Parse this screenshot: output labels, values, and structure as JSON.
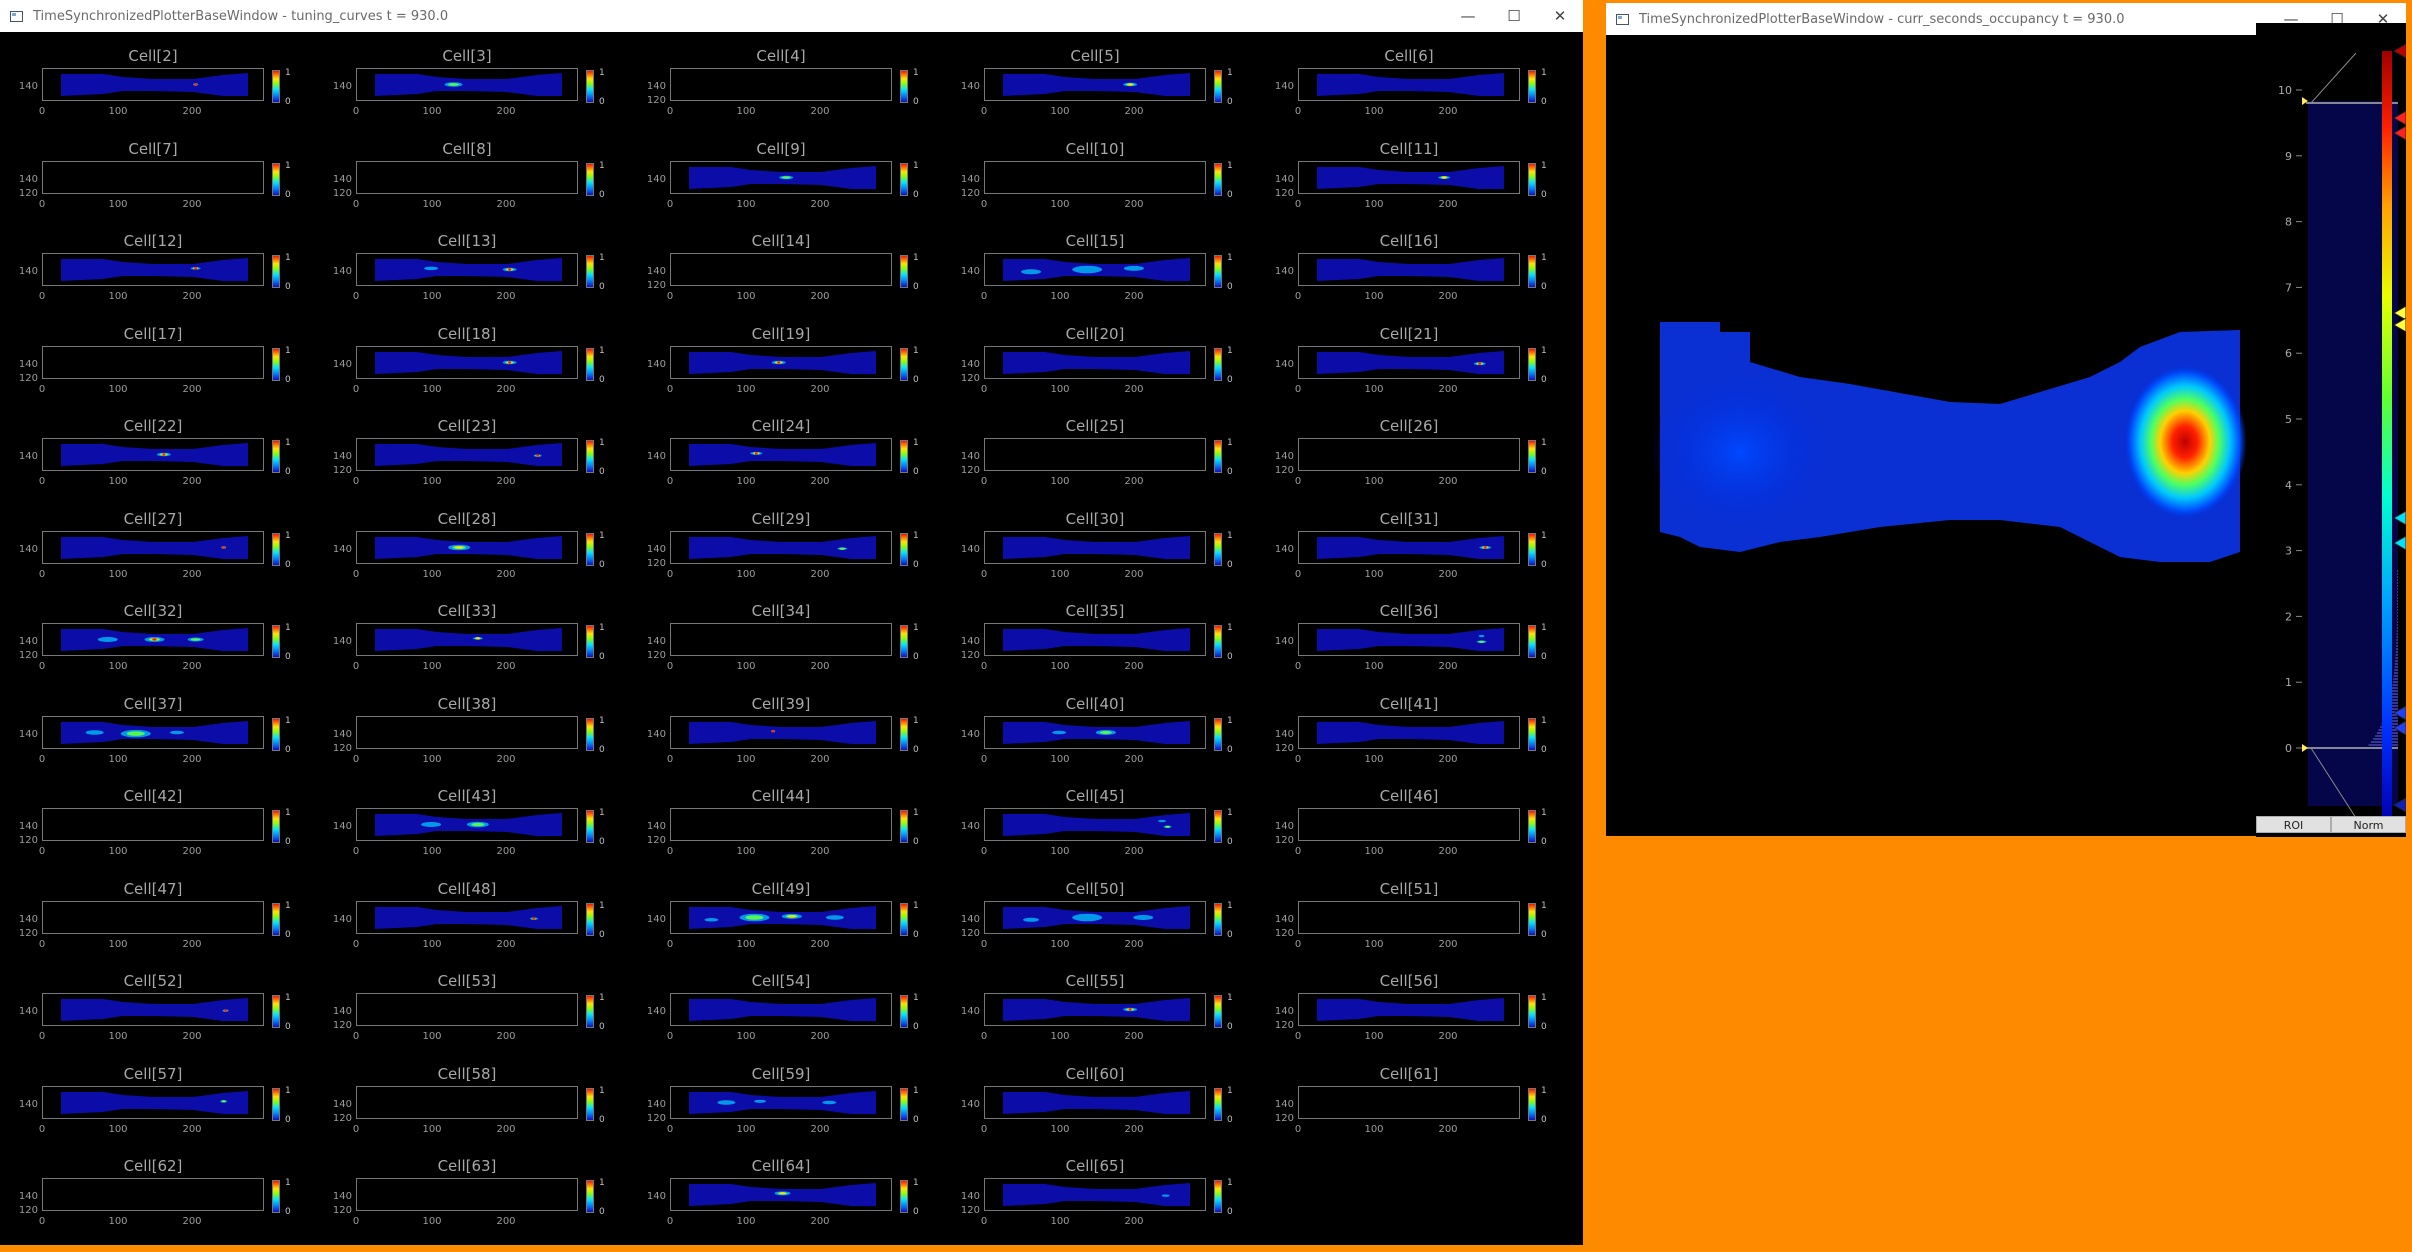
{
  "windows": {
    "tuning": {
      "title": "TimeSynchronizedPlotterBaseWindow - tuning_curves t = 930.0"
    },
    "occupancy": {
      "title": "TimeSynchronizedPlotterBaseWindow - curr_seconds_occupancy t = 930.0"
    }
  },
  "window_controls": {
    "minimize": "—",
    "maximize": "☐",
    "close": "✕"
  },
  "axis": {
    "y_top": "140",
    "y_bottom": "120",
    "x_ticks": [
      "0",
      "100",
      "200"
    ]
  },
  "colorbar": {
    "max": "1",
    "min": "0"
  },
  "cells": [
    {
      "label": "Cell[2]",
      "spots": [
        [
          0.72,
          0.5,
          5,
          1.0
        ]
      ]
    },
    {
      "label": "Cell[3]",
      "spots": [
        [
          0.42,
          0.5,
          18,
          0.75
        ]
      ]
    },
    {
      "label": "Cell[4]",
      "empty": true
    },
    {
      "label": "Cell[5]",
      "spots": [
        [
          0.68,
          0.5,
          14,
          0.8
        ]
      ]
    },
    {
      "label": "Cell[6]",
      "spots": []
    },
    {
      "label": "Cell[7]",
      "empty": true
    },
    {
      "label": "Cell[8]",
      "empty": true
    },
    {
      "label": "Cell[9]",
      "spots": [
        [
          0.52,
          0.5,
          14,
          0.7
        ]
      ]
    },
    {
      "label": "Cell[10]",
      "empty": true
    },
    {
      "label": "Cell[11]",
      "spots": [
        [
          0.68,
          0.5,
          12,
          0.8
        ]
      ]
    },
    {
      "label": "Cell[12]",
      "spots": [
        [
          0.72,
          0.45,
          10,
          0.9
        ]
      ]
    },
    {
      "label": "Cell[13]",
      "spots": [
        [
          0.3,
          0.45,
          14,
          0.6
        ],
        [
          0.72,
          0.5,
          14,
          1.0
        ]
      ]
    },
    {
      "label": "Cell[14]",
      "empty": true
    },
    {
      "label": "Cell[15]",
      "spots": [
        [
          0.15,
          0.6,
          20,
          0.6
        ],
        [
          0.45,
          0.5,
          30,
          0.55
        ],
        [
          0.7,
          0.45,
          20,
          0.55
        ]
      ]
    },
    {
      "label": "Cell[16]",
      "spots": []
    },
    {
      "label": "Cell[17]",
      "empty": true
    },
    {
      "label": "Cell[18]",
      "spots": [
        [
          0.72,
          0.5,
          14,
          0.9
        ]
      ]
    },
    {
      "label": "Cell[19]",
      "spots": [
        [
          0.48,
          0.5,
          14,
          1.0
        ]
      ]
    },
    {
      "label": "Cell[20]",
      "spots": []
    },
    {
      "label": "Cell[21]",
      "spots": [
        [
          0.87,
          0.55,
          12,
          1.0
        ]
      ]
    },
    {
      "label": "Cell[22]",
      "spots": [
        [
          0.55,
          0.5,
          14,
          1.0
        ]
      ]
    },
    {
      "label": "Cell[23]",
      "spots": [
        [
          0.87,
          0.55,
          8,
          1.0
        ]
      ]
    },
    {
      "label": "Cell[24]",
      "spots": [
        [
          0.36,
          0.45,
          12,
          0.9
        ]
      ]
    },
    {
      "label": "Cell[25]",
      "empty": true
    },
    {
      "label": "Cell[26]",
      "empty": true
    },
    {
      "label": "Cell[27]",
      "spots": [
        [
          0.87,
          0.5,
          5,
          0.9
        ]
      ]
    },
    {
      "label": "Cell[28]",
      "spots": [
        [
          0.45,
          0.5,
          22,
          0.8
        ]
      ]
    },
    {
      "label": "Cell[29]",
      "spots": [
        [
          0.82,
          0.55,
          10,
          0.7
        ]
      ]
    },
    {
      "label": "Cell[30]",
      "spots": []
    },
    {
      "label": "Cell[31]",
      "spots": [
        [
          0.9,
          0.5,
          12,
          1.0
        ]
      ]
    },
    {
      "label": "Cell[32]",
      "spots": [
        [
          0.25,
          0.5,
          20,
          0.55
        ],
        [
          0.5,
          0.5,
          20,
          0.9
        ],
        [
          0.72,
          0.5,
          16,
          0.7
        ]
      ]
    },
    {
      "label": "Cell[33]",
      "spots": [
        [
          0.55,
          0.45,
          10,
          0.8
        ]
      ]
    },
    {
      "label": "Cell[34]",
      "empty": true
    },
    {
      "label": "Cell[35]",
      "spots": []
    },
    {
      "label": "Cell[36]",
      "spots": [
        [
          0.88,
          0.35,
          6,
          0.6
        ],
        [
          0.88,
          0.6,
          10,
          0.7
        ]
      ]
    },
    {
      "label": "Cell[37]",
      "spots": [
        [
          0.18,
          0.5,
          18,
          0.55
        ],
        [
          0.4,
          0.55,
          30,
          0.75
        ],
        [
          0.62,
          0.5,
          14,
          0.5
        ]
      ]
    },
    {
      "label": "Cell[38]",
      "empty": true
    },
    {
      "label": "Cell[39]",
      "spots": [
        [
          0.45,
          0.45,
          4,
          1.0
        ]
      ]
    },
    {
      "label": "Cell[40]",
      "spots": [
        [
          0.3,
          0.5,
          14,
          0.5
        ],
        [
          0.55,
          0.5,
          20,
          0.7
        ]
      ]
    },
    {
      "label": "Cell[41]",
      "spots": []
    },
    {
      "label": "Cell[42]",
      "empty": true
    },
    {
      "label": "Cell[43]",
      "spots": [
        [
          0.3,
          0.5,
          20,
          0.5
        ],
        [
          0.55,
          0.5,
          22,
          0.75
        ]
      ]
    },
    {
      "label": "Cell[44]",
      "empty": true
    },
    {
      "label": "Cell[45]",
      "spots": [
        [
          0.85,
          0.35,
          8,
          0.6
        ],
        [
          0.88,
          0.6,
          8,
          0.7
        ]
      ]
    },
    {
      "label": "Cell[46]",
      "empty": true
    },
    {
      "label": "Cell[47]",
      "empty": true
    },
    {
      "label": "Cell[48]",
      "spots": [
        [
          0.85,
          0.55,
          8,
          0.9
        ]
      ]
    },
    {
      "label": "Cell[49]",
      "spots": [
        [
          0.12,
          0.6,
          14,
          0.6
        ],
        [
          0.35,
          0.5,
          30,
          0.75
        ],
        [
          0.55,
          0.45,
          20,
          0.85
        ],
        [
          0.78,
          0.5,
          18,
          0.6
        ]
      ]
    },
    {
      "label": "Cell[50]",
      "spots": [
        [
          0.15,
          0.6,
          16,
          0.5
        ],
        [
          0.45,
          0.5,
          30,
          0.5
        ],
        [
          0.75,
          0.5,
          20,
          0.45
        ]
      ]
    },
    {
      "label": "Cell[51]",
      "empty": true
    },
    {
      "label": "Cell[52]",
      "spots": [
        [
          0.88,
          0.55,
          6,
          0.9
        ]
      ]
    },
    {
      "label": "Cell[53]",
      "empty": true
    },
    {
      "label": "Cell[54]",
      "spots": []
    },
    {
      "label": "Cell[55]",
      "spots": [
        [
          0.68,
          0.5,
          14,
          1.0
        ]
      ]
    },
    {
      "label": "Cell[56]",
      "spots": []
    },
    {
      "label": "Cell[57]",
      "spots": [
        [
          0.87,
          0.45,
          7,
          0.7
        ]
      ]
    },
    {
      "label": "Cell[58]",
      "empty": true
    },
    {
      "label": "Cell[59]",
      "spots": [
        [
          0.2,
          0.5,
          18,
          0.6
        ],
        [
          0.38,
          0.45,
          12,
          0.55
        ],
        [
          0.75,
          0.5,
          14,
          0.6
        ]
      ]
    },
    {
      "label": "Cell[60]",
      "spots": []
    },
    {
      "label": "Cell[61]",
      "empty": true
    },
    {
      "label": "Cell[62]",
      "empty": true
    },
    {
      "label": "Cell[63]",
      "empty": true
    },
    {
      "label": "Cell[64]",
      "spots": [
        [
          0.5,
          0.45,
          16,
          0.85
        ]
      ]
    },
    {
      "label": "Cell[65]",
      "spots": [
        [
          0.87,
          0.55,
          8,
          0.6
        ]
      ]
    }
  ],
  "histogram": {
    "y_ticks": [
      "0",
      "1",
      "2",
      "3",
      "4",
      "5",
      "6",
      "7",
      "8",
      "9",
      "10"
    ],
    "roi_label": "ROI",
    "norm_label": "Norm"
  },
  "colors": {
    "background": "#fe8a00",
    "plot_bg": "#000000",
    "arena": "#0c0ca8"
  }
}
